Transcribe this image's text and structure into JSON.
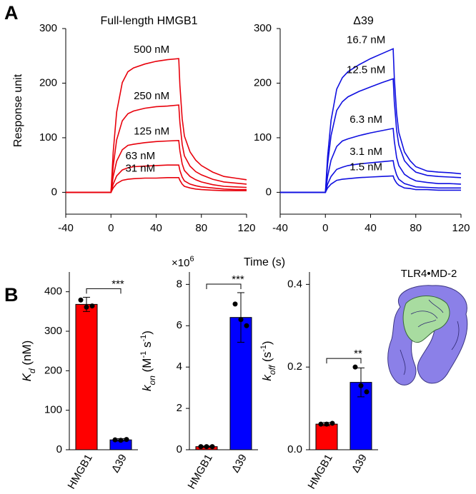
{
  "panel_labels": [
    "A",
    "B"
  ],
  "image_label": "TLR4•MD-2",
  "chart_data": [
    {
      "type": "line",
      "title": "Full-length HMGB1",
      "y_label": "Response unit",
      "x_label": "Time (s)",
      "xlim": [
        -40,
        120
      ],
      "xticks": [
        -40,
        0,
        40,
        80,
        120
      ],
      "ylim": [
        -40,
        300
      ],
      "yticks": [
        0,
        100,
        200,
        300
      ],
      "x": [
        -40,
        0,
        2,
        5,
        10,
        15,
        20,
        30,
        40,
        50,
        60,
        61,
        63,
        65,
        70,
        75,
        80,
        90,
        100,
        110,
        120
      ],
      "series": [
        {
          "name": "500 nM",
          "color": "#e8000b",
          "values": [
            0,
            0,
            74,
            147,
            201,
            221,
            228,
            235,
            240,
            243,
            245,
            196,
            135,
            103,
            74,
            59,
            49,
            37,
            29,
            26,
            23
          ]
        },
        {
          "name": "250 nM",
          "color": "#e8000b",
          "values": [
            0,
            0,
            48,
            96,
            131,
            144,
            149,
            154,
            157,
            158,
            160,
            128,
            88,
            67,
            48,
            38,
            32,
            24,
            19,
            17,
            15
          ]
        },
        {
          "name": "125 nM",
          "color": "#e8000b",
          "values": [
            0,
            0,
            29,
            57,
            78,
            86,
            88,
            91,
            93,
            94,
            95,
            76,
            52,
            40,
            29,
            23,
            19,
            14,
            11,
            10,
            9
          ]
        },
        {
          "name": "63 nM",
          "color": "#e8000b",
          "values": [
            0,
            0,
            15,
            30,
            41,
            45,
            47,
            48,
            49,
            50,
            50,
            40,
            28,
            21,
            15,
            12,
            10,
            8,
            6,
            5,
            5
          ]
        },
        {
          "name": "31 nM",
          "color": "#e8000b",
          "values": [
            0,
            0,
            8,
            16,
            22,
            24,
            25,
            26,
            26,
            27,
            27,
            22,
            15,
            11,
            8,
            6,
            5,
            4,
            3,
            3,
            3
          ]
        }
      ]
    },
    {
      "type": "line",
      "title": "Δ39",
      "xlim": [
        -40,
        120
      ],
      "xticks": [
        -40,
        0,
        40,
        80,
        120
      ],
      "ylim": [
        -40,
        300
      ],
      "yticks": [
        0,
        100,
        200,
        300
      ],
      "x": [
        -40,
        0,
        2,
        5,
        10,
        15,
        20,
        30,
        40,
        50,
        60,
        61,
        63,
        65,
        70,
        75,
        80,
        90,
        100,
        110,
        120
      ],
      "series": [
        {
          "name": "16.7 nM",
          "color": "#1010e0",
          "values": [
            0,
            0,
            66,
            132,
            189,
            210,
            221,
            234,
            245,
            254,
            263,
            210,
            145,
            110,
            74,
            58,
            47,
            39,
            37,
            36,
            34
          ]
        },
        {
          "name": "12.5 nM",
          "color": "#1010e0",
          "values": [
            0,
            0,
            52,
            104,
            150,
            166,
            175,
            185,
            193,
            201,
            208,
            166,
            114,
            87,
            58,
            46,
            37,
            31,
            29,
            28,
            27
          ]
        },
        {
          "name": "6.3 nM",
          "color": "#1010e0",
          "values": [
            0,
            0,
            29,
            59,
            84,
            94,
            98,
            104,
            109,
            113,
            117,
            94,
            64,
            49,
            33,
            26,
            21,
            18,
            16,
            16,
            15
          ]
        },
        {
          "name": "3.1 nM",
          "color": "#1010e0",
          "values": [
            0,
            0,
            15,
            29,
            42,
            46,
            49,
            52,
            54,
            56,
            58,
            46,
            32,
            24,
            16,
            13,
            10,
            9,
            8,
            8,
            8
          ]
        },
        {
          "name": "1.5 nM",
          "color": "#1010e0",
          "values": [
            0,
            0,
            8,
            15,
            22,
            24,
            25,
            27,
            28,
            29,
            30,
            24,
            17,
            13,
            8,
            7,
            5,
            5,
            4,
            4,
            4
          ]
        }
      ]
    },
    {
      "type": "bar",
      "categories": [
        "HMGB1",
        "Δ39"
      ],
      "colors": [
        "#ff0000",
        "#0000ff"
      ],
      "values": [
        368,
        25
      ],
      "errors": [
        18,
        3
      ],
      "points": [
        [
          379,
          361,
          364
        ],
        [
          25,
          24,
          26
        ]
      ],
      "ylim": [
        0,
        450
      ],
      "yticks": [
        0,
        100,
        200,
        300,
        400
      ],
      "significance": "***",
      "y_label": [
        {
          "text": "K",
          "style": "italic"
        },
        {
          "text": "d",
          "style": "italic-sub"
        },
        {
          "text": " (nM)",
          "style": "normal"
        }
      ]
    },
    {
      "type": "bar",
      "categories": [
        "HMGB1",
        "Δ39"
      ],
      "colors": [
        "#ff0000",
        "#0000ff"
      ],
      "values": [
        0.15,
        6.4
      ],
      "errors": [
        0.03,
        1.2
      ],
      "points": [
        [
          0.15,
          0.15,
          0.15
        ],
        [
          7.05,
          6.3,
          6.0
        ]
      ],
      "ylim": [
        0,
        8.6
      ],
      "yticks": [
        0,
        2,
        4,
        6,
        8
      ],
      "significance": "***",
      "multiplier": [
        {
          "text": "×10",
          "style": "normal"
        },
        {
          "text": "6",
          "style": "sup"
        }
      ],
      "y_label": [
        {
          "text": "k",
          "style": "italic"
        },
        {
          "text": "on",
          "style": "italic-sub"
        },
        {
          "text": " (M",
          "style": "normal"
        },
        {
          "text": "-1",
          "style": "sup"
        },
        {
          "text": " s",
          "style": "normal"
        },
        {
          "text": "-1",
          "style": "sup"
        },
        {
          "text": ")",
          "style": "normal"
        }
      ]
    },
    {
      "type": "bar",
      "categories": [
        "HMGB1",
        "Δ39"
      ],
      "colors": [
        "#ff0000",
        "#0000ff"
      ],
      "values": [
        0.062,
        0.163
      ],
      "errors": [
        0.004,
        0.035
      ],
      "points": [
        [
          0.062,
          0.062,
          0.064
        ],
        [
          0.2,
          0.155,
          0.14
        ]
      ],
      "ylim": [
        0,
        0.43
      ],
      "yticks": [
        {
          "value": 0,
          "label": "0.0"
        },
        0.2,
        0.4
      ],
      "significance": "**",
      "y_label": [
        {
          "text": "k",
          "style": "italic"
        },
        {
          "text": "off",
          "style": "italic-sub"
        },
        {
          "text": " (s",
          "style": "normal"
        },
        {
          "text": "-1",
          "style": "sup"
        },
        {
          "text": ")",
          "style": "normal"
        }
      ]
    }
  ]
}
